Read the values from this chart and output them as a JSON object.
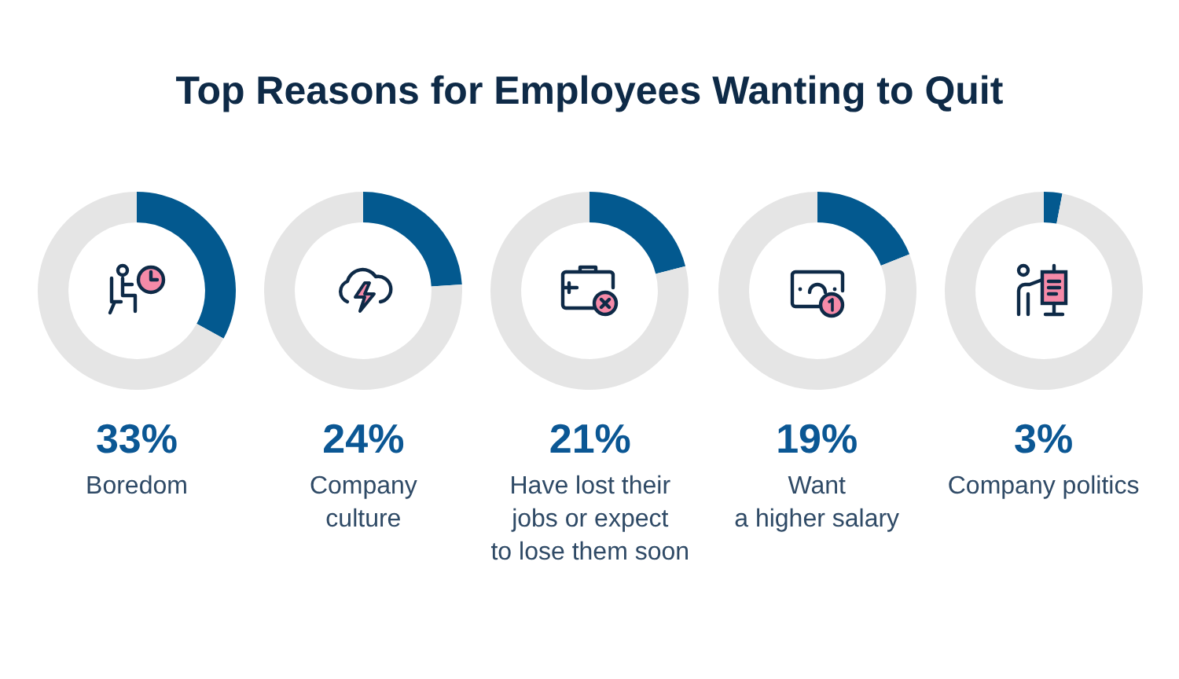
{
  "chart_data": [
    {
      "type": "donut",
      "title": "Top Reasons for Employees Wanting to Quit",
      "xlabel": "Boredom",
      "categories": [
        null,
        null
      ],
      "values": [
        33,
        67
      ],
      "colors": [
        "#03598f",
        "#e5e5e5"
      ],
      "annotations": [
        "33%"
      ]
    },
    {
      "type": "donut",
      "xlabel": "Company\nculture",
      "categories": [
        null,
        null
      ],
      "values": [
        24,
        76
      ],
      "colors": [
        "#03598f",
        "#e5e5e5"
      ],
      "annotations": [
        "24%"
      ]
    },
    {
      "type": "donut",
      "xlabel": "Have lost their\njobs or expect\nto lose them soon",
      "categories": [
        null,
        null
      ],
      "values": [
        21,
        79
      ],
      "colors": [
        "#03598f",
        "#e5e5e5"
      ],
      "annotations": [
        "21%"
      ]
    },
    {
      "type": "donut",
      "xlabel": "Want\na higher salary",
      "categories": [
        null,
        null
      ],
      "values": [
        19,
        81
      ],
      "colors": [
        "#03598f",
        "#e5e5e5"
      ],
      "annotations": [
        "19%"
      ]
    },
    {
      "type": "donut",
      "xlabel": "Company politics",
      "categories": [
        null,
        null
      ],
      "values": [
        3,
        97
      ],
      "colors": [
        "#03598f",
        "#e5e5e5"
      ],
      "annotations": [
        "3%"
      ]
    }
  ]
}
